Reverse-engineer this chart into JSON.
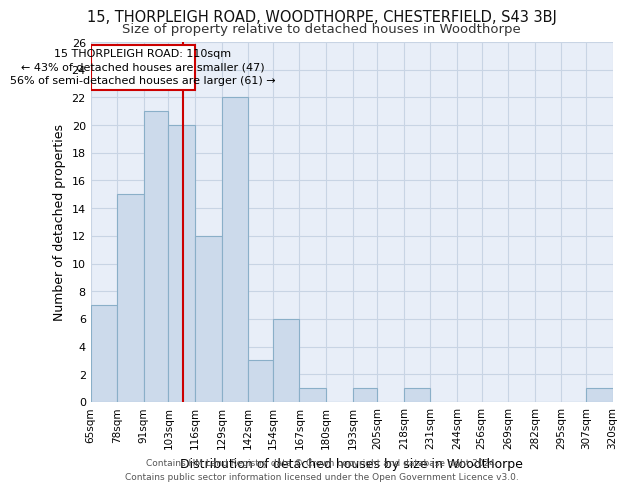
{
  "title": "15, THORPLEIGH ROAD, WOODTHORPE, CHESTERFIELD, S43 3BJ",
  "subtitle": "Size of property relative to detached houses in Woodthorpe",
  "xlabel": "Distribution of detached houses by size in Woodthorpe",
  "ylabel": "Number of detached properties",
  "bin_edges": [
    65,
    78,
    91,
    103,
    116,
    129,
    142,
    154,
    167,
    180,
    193,
    205,
    218,
    231,
    244,
    256,
    269,
    282,
    295,
    307,
    320
  ],
  "bar_heights": [
    7,
    15,
    21,
    20,
    12,
    22,
    3,
    6,
    1,
    0,
    1,
    0,
    1,
    0,
    0,
    0,
    0,
    0,
    0,
    1
  ],
  "bar_color": "#ccdaeb",
  "bar_edge_color": "#8aafc8",
  "property_size": 110,
  "red_line_color": "#cc0000",
  "annotation_line1": "15 THORPLEIGH ROAD: 110sqm",
  "annotation_line2": "← 43% of detached houses are smaller (47)",
  "annotation_line3": "56% of semi-detached houses are larger (61) →",
  "annotation_box_color": "#cc0000",
  "annotation_text_color": "#000000",
  "ylim": [
    0,
    26
  ],
  "yticks": [
    0,
    2,
    4,
    6,
    8,
    10,
    12,
    14,
    16,
    18,
    20,
    22,
    24,
    26
  ],
  "grid_color": "#c8d4e4",
  "background_color": "#e8eef8",
  "footer_line1": "Contains HM Land Registry data © Crown copyright and database right 2024.",
  "footer_line2": "Contains public sector information licensed under the Open Government Licence v3.0.",
  "title_fontsize": 10.5,
  "subtitle_fontsize": 9.5,
  "tick_label_fontsize": 7.5,
  "axis_label_fontsize": 9,
  "footer_fontsize": 6.5,
  "annot_fontsize": 8
}
